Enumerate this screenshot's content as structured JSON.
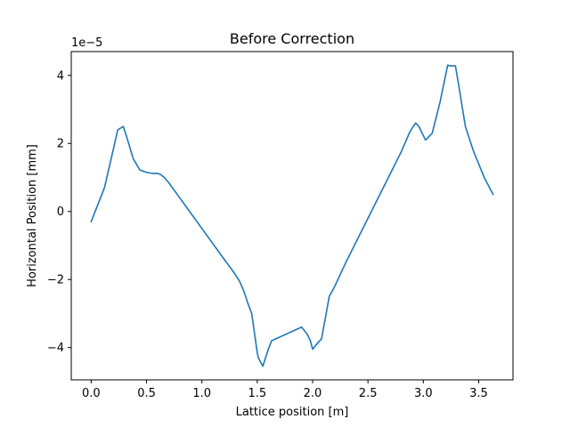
{
  "chart_data": {
    "type": "line",
    "title": "Before Correction",
    "xlabel": "Lattice position [m]",
    "ylabel": "Horizontal Position [mm]",
    "y_offset_label": "1e−5",
    "y_scale": 1e-05,
    "xlim": [
      -0.18,
      3.81
    ],
    "ylim": [
      -4.95,
      4.7
    ],
    "xticks": [
      0.0,
      0.5,
      1.0,
      1.5,
      2.0,
      2.5,
      3.0,
      3.5
    ],
    "xtick_labels": [
      "0.0",
      "0.5",
      "1.0",
      "1.5",
      "2.0",
      "2.5",
      "3.0",
      "3.5"
    ],
    "yticks": [
      -4,
      -2,
      0,
      2,
      4
    ],
    "ytick_labels": [
      "−4",
      "−2",
      "0",
      "2",
      "4"
    ],
    "grid": false,
    "legend": "none",
    "colors": {
      "series": "#1f77b4"
    },
    "series": [
      {
        "x": [
          0.0,
          0.06,
          0.12,
          0.17,
          0.24,
          0.29,
          0.32,
          0.38,
          0.44,
          0.5,
          0.55,
          0.6,
          0.63,
          0.66,
          0.7,
          0.8,
          0.9,
          1.0,
          1.1,
          1.2,
          1.28,
          1.34,
          1.38,
          1.41,
          1.45,
          1.5,
          1.51,
          1.55,
          1.6,
          1.63,
          1.9,
          1.95,
          1.98,
          2.0,
          2.05,
          2.08,
          2.12,
          2.15,
          2.2,
          2.3,
          2.4,
          2.5,
          2.6,
          2.7,
          2.8,
          2.88,
          2.91,
          2.93,
          2.96,
          3.02,
          3.08,
          3.15,
          3.22,
          3.25,
          3.29,
          3.32,
          3.38,
          3.45,
          3.55,
          3.63
        ],
        "y": [
          -0.3,
          0.2,
          0.7,
          1.4,
          2.4,
          2.5,
          2.2,
          1.55,
          1.22,
          1.15,
          1.12,
          1.12,
          1.08,
          1.0,
          0.85,
          0.4,
          -0.05,
          -0.5,
          -0.95,
          -1.4,
          -1.75,
          -2.05,
          -2.35,
          -2.65,
          -3.0,
          -4.15,
          -4.3,
          -4.55,
          -4.05,
          -3.8,
          -3.4,
          -3.6,
          -3.8,
          -4.05,
          -3.85,
          -3.75,
          -3.05,
          -2.5,
          -2.2,
          -1.5,
          -0.85,
          -0.2,
          0.45,
          1.1,
          1.75,
          2.35,
          2.5,
          2.6,
          2.5,
          2.1,
          2.3,
          3.2,
          4.3,
          4.28,
          4.28,
          3.7,
          2.5,
          1.8,
          1.0,
          0.5
        ]
      }
    ]
  }
}
